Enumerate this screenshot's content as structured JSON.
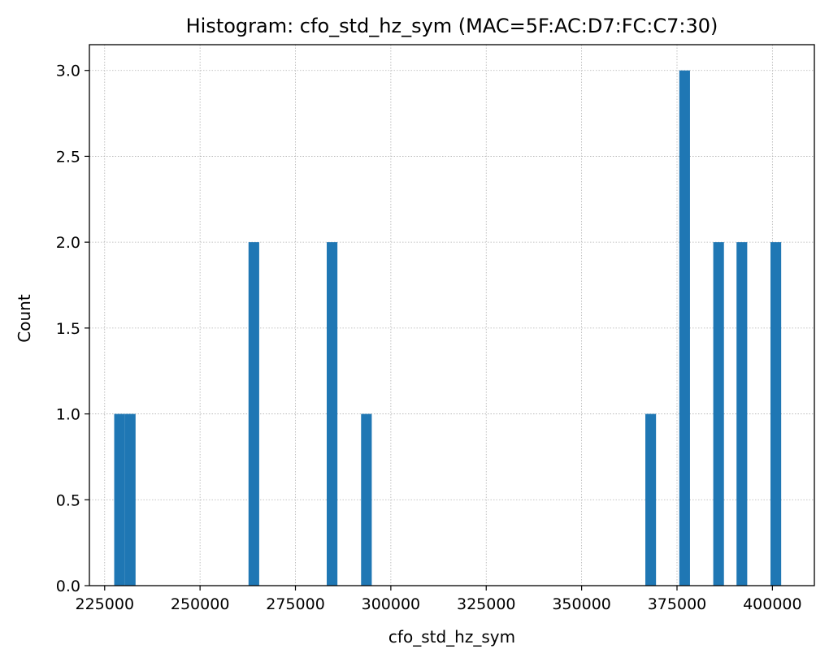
{
  "chart_data": {
    "type": "bar",
    "title": "Histogram: cfo_std_hz_sym (MAC=5F:AC:D7:FC:C7:30)",
    "xlabel": "cfo_std_hz_sym",
    "ylabel": "Count",
    "xlim": [
      221000,
      411000
    ],
    "ylim": [
      0,
      3.15
    ],
    "xticks": [
      225000,
      250000,
      275000,
      300000,
      325000,
      350000,
      375000,
      400000
    ],
    "xtick_labels": [
      "225000",
      "250000",
      "275000",
      "300000",
      "325000",
      "350000",
      "375000",
      "400000"
    ],
    "yticks": [
      0.0,
      0.5,
      1.0,
      1.5,
      2.0,
      2.5,
      3.0
    ],
    "ytick_labels": [
      "0.0",
      "0.5",
      "1.0",
      "1.5",
      "2.0",
      "2.5",
      "3.0"
    ],
    "grid": true,
    "bar_color": "#1f77b4",
    "bins": [
      {
        "x0": 227500,
        "x1": 230300,
        "count": 1
      },
      {
        "x0": 230300,
        "x1": 233100,
        "count": 1
      },
      {
        "x0": 262700,
        "x1": 265500,
        "count": 2
      },
      {
        "x0": 283200,
        "x1": 286000,
        "count": 2
      },
      {
        "x0": 292200,
        "x1": 295000,
        "count": 1
      },
      {
        "x0": 366700,
        "x1": 369500,
        "count": 1
      },
      {
        "x0": 375600,
        "x1": 378400,
        "count": 3
      },
      {
        "x0": 384500,
        "x1": 387300,
        "count": 2
      },
      {
        "x0": 390600,
        "x1": 393400,
        "count": 2
      },
      {
        "x0": 399500,
        "x1": 402300,
        "count": 2
      }
    ]
  }
}
